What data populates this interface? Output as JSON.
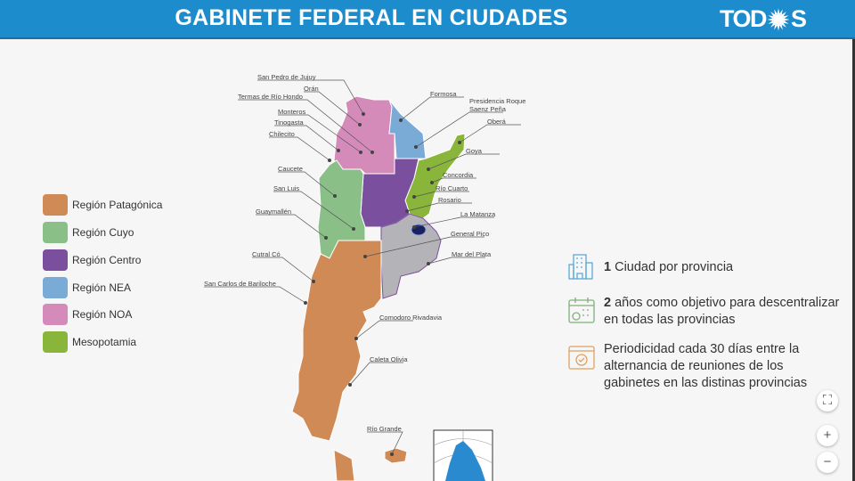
{
  "header": {
    "title": "GABINETE FEDERAL EN CIUDADES",
    "logo_text": "TODOS",
    "color": "#1d8ccc"
  },
  "legend": [
    {
      "label": "Región Patagónica",
      "color": "#d08a55"
    },
    {
      "label": "Región Cuyo",
      "color": "#8bbf88"
    },
    {
      "label": "Región Centro",
      "color": "#7a4f9d"
    },
    {
      "label": "Región NEA",
      "color": "#7aaad6"
    },
    {
      "label": "Región NOA",
      "color": "#d58bba"
    },
    {
      "label": "Mesopotamia",
      "color": "#8ab53b"
    }
  ],
  "cities": [
    "San Pedro de Jujuy",
    "Orán",
    "Termas de Río Hondo",
    "Monteros",
    "Tinogasta",
    "Chilecito",
    "Caucete",
    "San Luis",
    "Guaymallén",
    "Cutral Có",
    "San Carlos de Bariloche",
    "Formosa",
    "Presidencia Roque Saenz Peña",
    "Oberá",
    "Goya",
    "Concordia",
    "Río Cuarto",
    "Rosario",
    "La Matanza",
    "General Pico",
    "Mar del Plata",
    "Comodoro Rivadavia",
    "Caleta Olivia",
    "Río Grande"
  ],
  "info": [
    {
      "bold": "1",
      "text": " Ciudad por provincia",
      "icon": "city-buildings-icon",
      "color": "#5aaad8"
    },
    {
      "bold": "2",
      "text": " años como objetivo para descentralizar en todas las provincias",
      "icon": "calendar-check-icon",
      "color": "#7fb07a"
    },
    {
      "bold": "",
      "text": "Periodicidad cada 30 días entre la alternancia de reuniones de los gabinetes en las distinas provincias",
      "icon": "calendar-clock-icon",
      "color": "#e0a060"
    }
  ],
  "controls": {
    "fit": "⛶",
    "zoom_in": "+",
    "zoom_out": "−"
  }
}
